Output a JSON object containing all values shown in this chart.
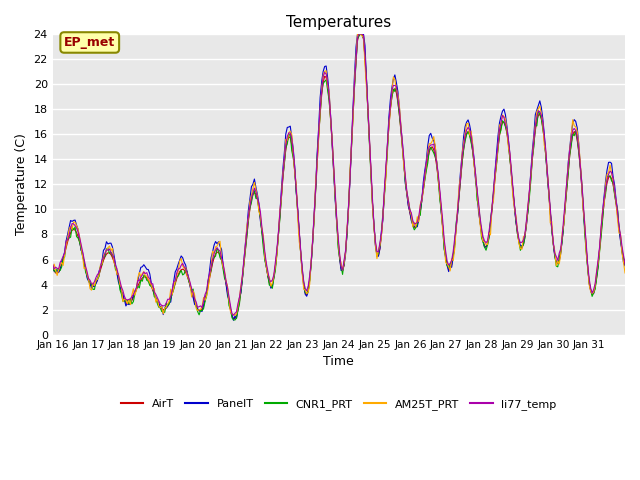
{
  "title": "Temperatures",
  "xlabel": "Time",
  "ylabel": "Temperature (C)",
  "ylim": [
    0,
    24
  ],
  "x_tick_labels": [
    "Jan 16",
    "Jan 17",
    "Jan 18",
    "Jan 19",
    "Jan 20",
    "Jan 21",
    "Jan 22",
    "Jan 23",
    "Jan 24",
    "Jan 25",
    "Jan 26",
    "Jan 27",
    "Jan 28",
    "Jan 29",
    "Jan 30",
    "Jan 31"
  ],
  "series_colors": {
    "AirT": "#cc0000",
    "PanelT": "#0000cc",
    "CNR1_PRT": "#00aa00",
    "AM25T_PRT": "#ffaa00",
    "li77_temp": "#aa00aa"
  },
  "background_color": "#e8e8e8",
  "ep_met_label": "EP_met",
  "ep_met_text_color": "#990000",
  "ep_met_bg_color": "#ffffaa",
  "ep_met_edge_color": "#888800"
}
